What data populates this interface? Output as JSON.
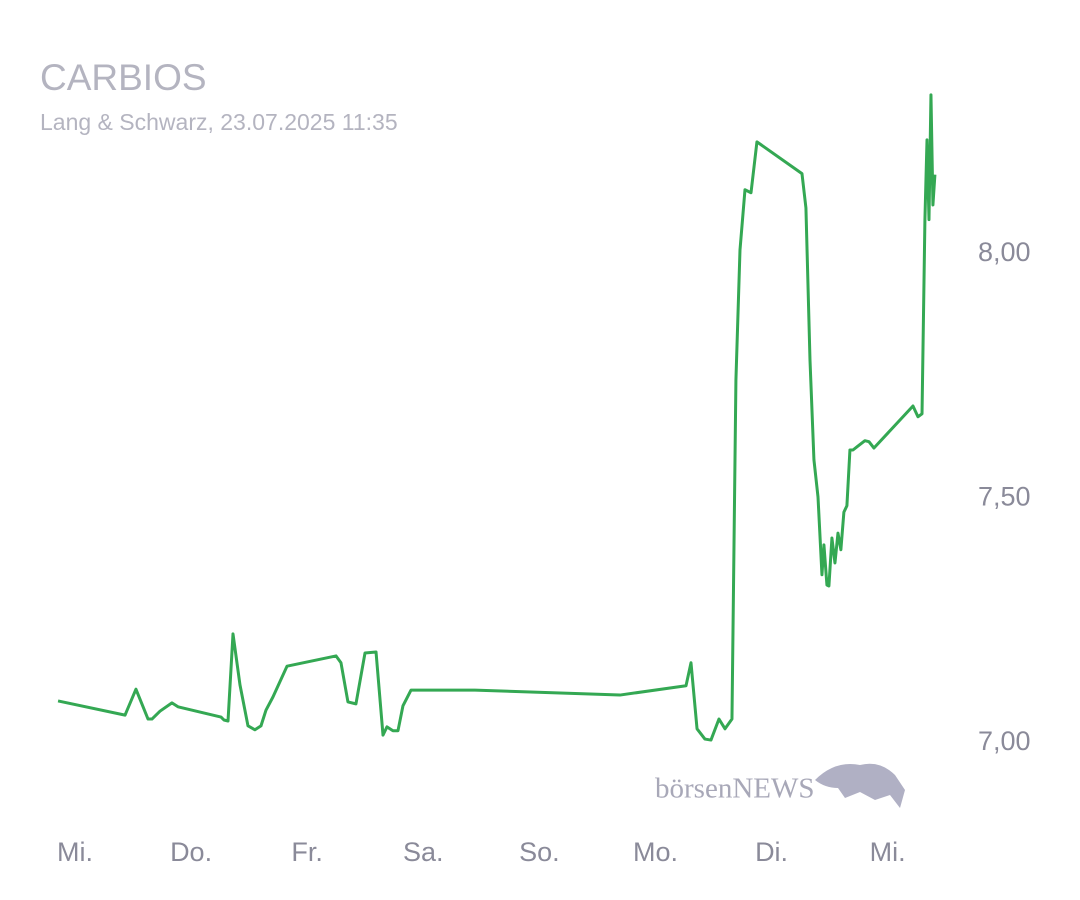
{
  "chart_data": {
    "type": "line",
    "title": "CARBIOS",
    "subtitle": "Lang & Schwarz, 23.07.2025 11:35",
    "watermark": "börsenNEWS",
    "color": "#34a853",
    "x": [
      -0.146,
      0.431,
      0.525,
      0.629,
      0.663,
      0.732,
      0.835,
      0.887,
      1.258,
      1.283,
      1.318,
      1.361,
      1.421,
      1.49,
      1.55,
      1.602,
      1.645,
      1.705,
      1.826,
      2.248,
      2.291,
      2.351,
      2.42,
      2.498,
      2.593,
      2.653,
      2.687,
      2.739,
      2.782,
      2.825,
      2.894,
      3.445,
      4.694,
      5.263,
      5.306,
      5.358,
      5.426,
      5.478,
      5.547,
      5.599,
      5.659,
      5.693,
      5.728,
      5.771,
      5.823,
      5.874,
      6.262,
      6.296,
      6.331,
      6.365,
      6.4,
      6.434,
      6.451,
      6.477,
      6.494,
      6.52,
      6.546,
      6.572,
      6.597,
      6.623,
      6.649,
      6.675,
      6.701,
      6.744,
      6.804,
      6.839,
      6.882,
      7.218,
      7.261,
      7.296,
      7.321,
      7.339,
      7.356,
      7.373,
      7.39,
      7.407
    ],
    "values": [
      7.086,
      7.057,
      7.11,
      7.049,
      7.049,
      7.065,
      7.082,
      7.074,
      7.053,
      7.047,
      7.045,
      7.223,
      7.119,
      7.035,
      7.027,
      7.035,
      7.067,
      7.094,
      7.157,
      7.178,
      7.164,
      7.084,
      7.08,
      7.184,
      7.186,
      7.016,
      7.033,
      7.025,
      7.025,
      7.076,
      7.108,
      7.108,
      7.098,
      7.117,
      7.164,
      7.029,
      7.008,
      7.006,
      7.049,
      7.029,
      7.049,
      7.742,
      8.008,
      8.131,
      8.125,
      8.229,
      8.164,
      8.094,
      7.783,
      7.579,
      7.503,
      7.344,
      7.405,
      7.323,
      7.321,
      7.419,
      7.368,
      7.429,
      7.395,
      7.472,
      7.485,
      7.599,
      7.599,
      7.607,
      7.618,
      7.616,
      7.603,
      7.689,
      7.667,
      7.673,
      8.07,
      8.233,
      8.07,
      8.325,
      8.1,
      8.162
    ],
    "xlim": [
      -0.646,
      7.537
    ],
    "xticks": [
      {
        "value": 0,
        "label": "Mi."
      },
      {
        "value": 1,
        "label": "Do."
      },
      {
        "value": 2,
        "label": "Fr."
      },
      {
        "value": 3,
        "label": "Sa."
      },
      {
        "value": 4,
        "label": "So."
      },
      {
        "value": 5,
        "label": "Mo."
      },
      {
        "value": 6,
        "label": "Di."
      },
      {
        "value": 7,
        "label": "Mi."
      }
    ],
    "ylim": [
      6.679,
      8.519
    ],
    "yticks": [
      {
        "value": 7,
        "label": "7,00"
      },
      {
        "value": 7.5,
        "label": "7,50"
      },
      {
        "value": 8,
        "label": "8,00"
      }
    ]
  }
}
